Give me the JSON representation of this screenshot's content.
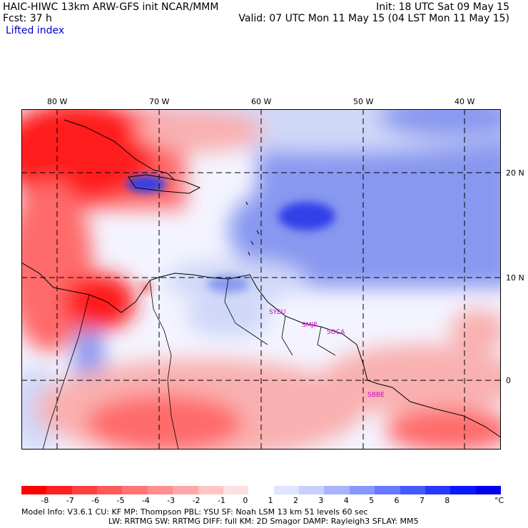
{
  "header": {
    "line1_left": "HAIC-HIWC 13km ARW-GFS init    NCAR/MMM",
    "line2_left": "Fcst:    37 h",
    "line1_right": "Init: 18 UTC Sat 09 May 15",
    "line2_right": "Valid: 07 UTC Mon 11 May 15 (04 LST Mon 11 May 15)",
    "field_name": "Lifted index"
  },
  "map": {
    "lon_labels": [
      "80 W",
      "70 W",
      "60 W",
      "50 W",
      "40 W"
    ],
    "lat_labels": [
      "20 N",
      "10 N",
      "0"
    ],
    "stations": [
      "SYEU",
      "SMJP",
      "SOCA",
      "SBBE"
    ],
    "colors": {
      "strong_neg": "#ff1a1a",
      "neg": "#ff6a6a",
      "weak_neg": "#f9b0b0",
      "neutral": "#ffffff",
      "weak_pos": "#d0d8f8",
      "pos": "#8898f0",
      "strong_pos": "#3040e8",
      "station": "#cc00cc"
    }
  },
  "colorbar": {
    "ticks": [
      "-8",
      "-7",
      "-6",
      "-5",
      "-4",
      "-3",
      "-2",
      "-1",
      "0",
      "1",
      "2",
      "3",
      "4",
      "5",
      "6",
      "7",
      "8"
    ],
    "unit": "°C",
    "colors": [
      "#ff0000",
      "#ff2020",
      "#ff4040",
      "#ff5a5a",
      "#ff7474",
      "#ff8e8e",
      "#ffa8a8",
      "#ffc4c4",
      "#ffe0e0",
      "#ffffff",
      "#e0e4ff",
      "#c8d0ff",
      "#a8b4ff",
      "#8896ff",
      "#6878ff",
      "#4858ff",
      "#2838ff",
      "#0818ff",
      "#0000ee"
    ]
  },
  "footer": {
    "line1": "Model Info: V3.6.1    CU: KF       MP: Thompson      PBL: YSU        SF: Noah LSM     13 km    51 levels   60 sec",
    "line2": "LW: RRTMG    SW: RRTMG   DIFF: full    KM: 2D Smagor DAMP: Rayleigh3   SFLAY: MM5"
  }
}
